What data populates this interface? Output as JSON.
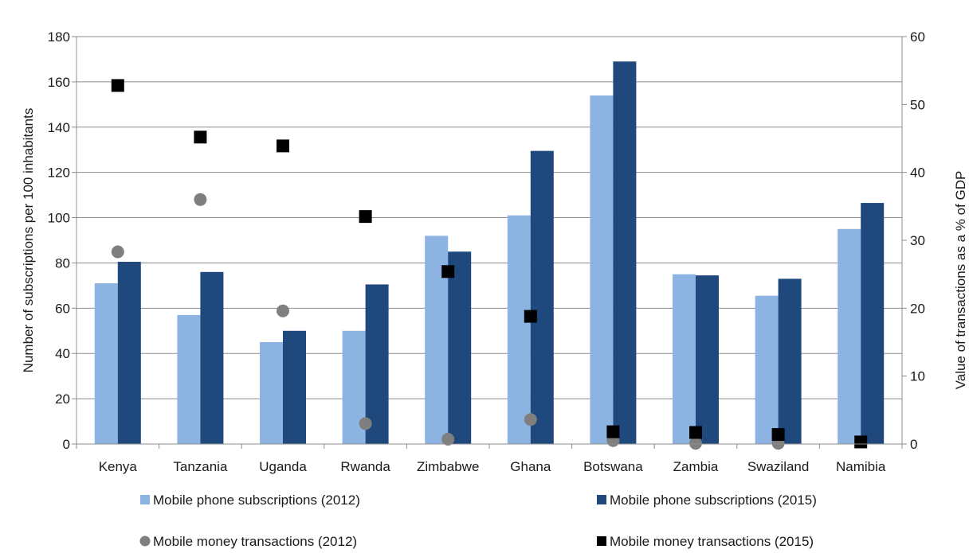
{
  "chart_data": {
    "type": "bar",
    "categories": [
      "Kenya",
      "Tanzania",
      "Uganda",
      "Rwanda",
      "Zimbabwe",
      "Ghana",
      "Botswana",
      "Zambia",
      "Swaziland",
      "Namibia"
    ],
    "ylabel_left": "Number of subscriptions per 100 inhabitants",
    "ylabel_right": "Value of transactions as a % of GDP",
    "ylim_left": [
      0,
      180
    ],
    "yticks_left": [
      0,
      20,
      40,
      60,
      80,
      100,
      120,
      140,
      160,
      180
    ],
    "ylim_right": [
      0,
      60
    ],
    "yticks_right": [
      0,
      10,
      20,
      30,
      40,
      50,
      60
    ],
    "grid": true,
    "legend_position": "bottom",
    "bar_series": [
      {
        "name": "Mobile phone subscriptions (2012)",
        "axis": "left",
        "color": "#8db3e2",
        "values": [
          71,
          57,
          45,
          50,
          92,
          101,
          154,
          75,
          65.5,
          95
        ]
      },
      {
        "name": "Mobile phone subscriptions (2015)",
        "axis": "left",
        "color": "#1f497d",
        "values": [
          80.5,
          76,
          50,
          70.5,
          85,
          129.5,
          169,
          74.5,
          73,
          106.5
        ]
      }
    ],
    "marker_series": [
      {
        "name": "Mobile money transactions (2012)",
        "axis": "right",
        "color": "#7f7f7f",
        "marker": "circle",
        "values": [
          28.3,
          36,
          19.6,
          3,
          0.7,
          3.6,
          0.5,
          0.1,
          0.1,
          null
        ]
      },
      {
        "name": "Mobile money transactions (2015)",
        "axis": "right",
        "color": "#000000",
        "marker": "square",
        "values": [
          52.8,
          45.2,
          43.9,
          33.5,
          25.4,
          18.8,
          1.8,
          1.7,
          1.4,
          0.3
        ]
      }
    ]
  }
}
